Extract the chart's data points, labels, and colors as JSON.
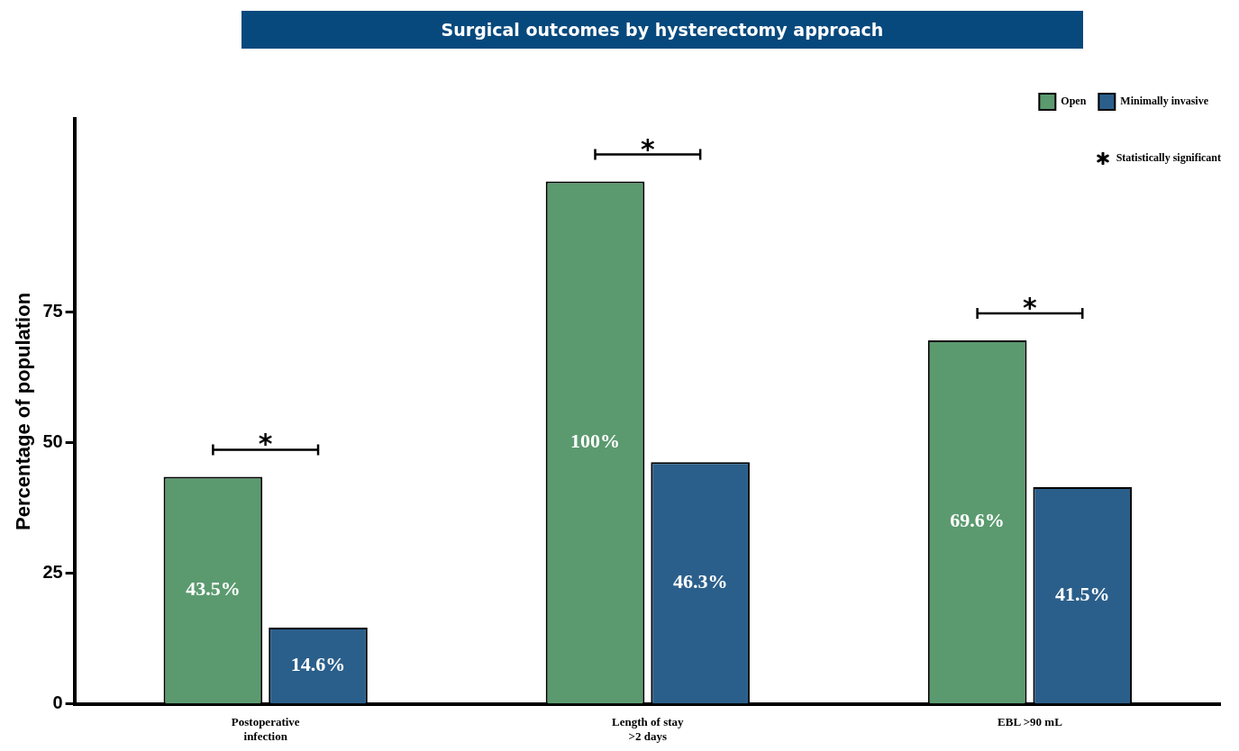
{
  "chart_data": {
    "type": "bar",
    "title": "Surgical outcomes by hysterectomy approach",
    "ylabel": "Percentage of population",
    "categories": [
      "Postoperative infection",
      "Length of stay >2 days",
      "EBL >90 mL"
    ],
    "series": [
      {
        "name": "Open",
        "color": "#5b9a6f",
        "values": [
          43.5,
          100,
          69.6
        ],
        "value_labels": [
          "43.5%",
          "100%",
          "69.6%"
        ]
      },
      {
        "name": "Minimally invasive",
        "color": "#2b5f8b",
        "values": [
          14.6,
          46.3,
          41.5
        ],
        "value_labels": [
          "14.6%",
          "46.3%",
          "41.5%"
        ]
      }
    ],
    "ylim": [
      0,
      112
    ],
    "yticks": [
      0,
      25,
      50,
      75
    ],
    "grid": false,
    "legend": "top right",
    "annotations": [
      "*",
      "*",
      "*",
      "Statistically significant"
    ]
  }
}
